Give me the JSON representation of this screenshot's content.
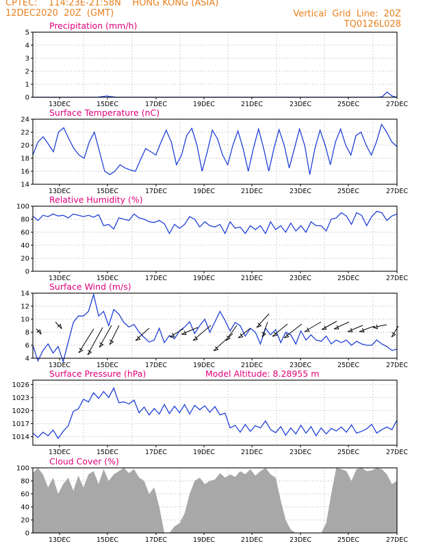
{
  "header": {
    "line1_left": "CPTEC:    114:23E-21:58N    HONG KONG (ASIA)",
    "line2_left": "12DEC2020  20Z  (GMT)",
    "line1_right": "Vertical  Grid  Line:  20Z",
    "line2_right": "TQ0126L028"
  },
  "colors": {
    "header": "#e87f1b",
    "title": "#e0007a",
    "series": "#1f3fd6",
    "cloud": "#a8a8a8",
    "arrow": "#000000"
  },
  "chart_data": [
    {
      "type": "line",
      "title": "Precipitation  (mm/h)",
      "x_ticks": [
        "13DEC",
        "15DEC",
        "17DEC",
        "19DEC",
        "21DEC",
        "23DEC",
        "25DEC",
        "27DEC"
      ],
      "x_range_days": [
        12.83,
        27.0
      ],
      "ylim": [
        0,
        5
      ],
      "y_ticks": [
        "0",
        "1",
        "2",
        "3",
        "4",
        "5"
      ],
      "series": [
        {
          "values": [
            0,
            0,
            0,
            0,
            0,
            0,
            0,
            0,
            0,
            0,
            0,
            0,
            0,
            0,
            0.05,
            0.1,
            0.05,
            0,
            0,
            0,
            0,
            0,
            0,
            0,
            0,
            0,
            0,
            0,
            0,
            0,
            0,
            0,
            0,
            0,
            0,
            0,
            0,
            0,
            0,
            0,
            0,
            0,
            0,
            0,
            0,
            0,
            0,
            0,
            0,
            0,
            0,
            0,
            0,
            0,
            0,
            0,
            0,
            0,
            0,
            0,
            0,
            0,
            0,
            0,
            0,
            0,
            0,
            0,
            0,
            0,
            0,
            0.05,
            0.4,
            0.1,
            0
          ]
        }
      ]
    },
    {
      "type": "line",
      "title": "Surface  Temperature  (nC)",
      "x_ticks": [
        "13DEC",
        "15DEC",
        "17DEC",
        "19DEC",
        "21DEC",
        "23DEC",
        "25DEC",
        "27DEC"
      ],
      "x_range_days": [
        12.83,
        27.0
      ],
      "ylim": [
        14,
        24
      ],
      "y_ticks": [
        "14",
        "16",
        "18",
        "20",
        "22",
        "24"
      ],
      "series": [
        {
          "values": [
            18.5,
            20.5,
            21.3,
            20.2,
            19.0,
            22.0,
            22.7,
            21.0,
            19.5,
            18.5,
            18.0,
            20.5,
            22.0,
            19.0,
            16.0,
            15.5,
            16.0,
            17.0,
            16.5,
            16.2,
            16.0,
            17.8,
            19.5,
            19.0,
            18.5,
            20.5,
            22.3,
            20.5,
            17.0,
            18.5,
            21.5,
            22.6,
            20.0,
            16.0,
            19.0,
            22.3,
            21.0,
            18.5,
            17.0,
            20.0,
            22.2,
            19.5,
            16.0,
            19.5,
            22.5,
            19.5,
            16.0,
            19.5,
            22.4,
            20.0,
            16.5,
            19.5,
            22.5,
            20.0,
            15.5,
            19.5,
            22.3,
            20.0,
            17.0,
            20.5,
            22.5,
            20.0,
            18.5,
            21.5,
            22.0,
            20.0,
            18.5,
            20.5,
            23.2,
            22.0,
            20.5,
            19.8
          ]
        }
      ]
    },
    {
      "type": "line",
      "title": "Relative  Humidity  (%)",
      "x_ticks": [
        "13DEC",
        "15DEC",
        "17DEC",
        "19DEC",
        "21DEC",
        "23DEC",
        "25DEC",
        "27DEC"
      ],
      "x_range_days": [
        12.83,
        27.0
      ],
      "ylim": [
        0,
        100
      ],
      "y_ticks": [
        "0",
        "20",
        "40",
        "60",
        "80",
        "100"
      ],
      "series": [
        {
          "values": [
            85,
            78,
            86,
            84,
            88,
            85,
            86,
            82,
            88,
            86,
            84,
            86,
            83,
            87,
            70,
            72,
            65,
            82,
            80,
            78,
            88,
            82,
            80,
            76,
            75,
            78,
            73,
            58,
            72,
            66,
            72,
            84,
            80,
            68,
            76,
            70,
            68,
            72,
            58,
            76,
            66,
            68,
            58,
            70,
            64,
            70,
            58,
            76,
            64,
            70,
            60,
            74,
            62,
            70,
            60,
            76,
            70,
            70,
            62,
            80,
            82,
            90,
            85,
            72,
            90,
            86,
            70,
            84,
            92,
            90,
            78,
            85,
            88
          ]
        }
      ]
    },
    {
      "type": "line",
      "title": "Surface  Wind  (m/s)",
      "x_ticks": [
        "13DEC",
        "15DEC",
        "17DEC",
        "19DEC",
        "21DEC",
        "23DEC",
        "25DEC",
        "27DEC"
      ],
      "x_range_days": [
        12.83,
        27.0
      ],
      "ylim": [
        4,
        14
      ],
      "y_ticks": [
        "4",
        "6",
        "8",
        "10",
        "12",
        "14"
      ],
      "series": [
        {
          "values": [
            6.0,
            3.6,
            5.2,
            6.2,
            4.8,
            5.8,
            3.5,
            6.5,
            9.5,
            10.5,
            10.5,
            11.2,
            13.8,
            10.5,
            11.2,
            9.0,
            11.5,
            10.8,
            9.5,
            8.8,
            9.2,
            8.0,
            7.2,
            6.5,
            6.8,
            8.6,
            6.4,
            7.5,
            7.0,
            8.2,
            8.8,
            9.6,
            7.8,
            9.0,
            10.0,
            8.0,
            9.6,
            11.2,
            9.8,
            8.2,
            9.5,
            9.0,
            7.4,
            8.6,
            8.0,
            6.2,
            8.6,
            7.6,
            8.4,
            6.4,
            8.0,
            7.6,
            6.2,
            8.2,
            6.8,
            7.6,
            6.8,
            6.6,
            7.4,
            6.2,
            6.8,
            6.4,
            6.8,
            6.0,
            6.6,
            6.2,
            6.0,
            6.0,
            6.8,
            6.2,
            5.8,
            5.2,
            5.4
          ]
        }
      ],
      "wind_barbs": "direction arrows pointing toward southwest"
    },
    {
      "type": "line",
      "title": "Surface  Pressure  (hPa)",
      "annotation": "Model  Altitude:  8.28955  m",
      "x_ticks": [
        "13DEC",
        "15DEC",
        "17DEC",
        "19DEC",
        "21DEC",
        "23DEC",
        "25DEC",
        "27DEC"
      ],
      "x_range_days": [
        12.83,
        27.0
      ],
      "ylim": [
        1012,
        1027
      ],
      "y_ticks": [
        "1014",
        "1017",
        "1020",
        "1023",
        "1026"
      ],
      "series": [
        {
          "values": [
            1014.8,
            1013.8,
            1015.0,
            1014.2,
            1015.5,
            1013.6,
            1015.2,
            1016.5,
            1019.8,
            1020.4,
            1022.6,
            1022.0,
            1024.1,
            1022.8,
            1024.4,
            1023.0,
            1025.2,
            1021.8,
            1022.0,
            1021.5,
            1022.4,
            1019.5,
            1020.8,
            1019.0,
            1020.5,
            1019.2,
            1021.4,
            1019.3,
            1021.0,
            1019.5,
            1021.4,
            1019.2,
            1021.2,
            1020.2,
            1021.1,
            1019.6,
            1020.9,
            1019.0,
            1019.4,
            1016.0,
            1016.6,
            1015.0,
            1016.8,
            1015.2,
            1016.5,
            1016.0,
            1017.6,
            1015.6,
            1014.9,
            1016.3,
            1014.3,
            1016.0,
            1014.6,
            1016.6,
            1014.8,
            1016.3,
            1014.2,
            1016.0,
            1014.6,
            1015.9,
            1015.3,
            1016.2,
            1015.0,
            1016.7,
            1014.8,
            1015.2,
            1015.8,
            1016.8,
            1014.8,
            1015.6,
            1016.2,
            1015.6,
            1017.8
          ]
        }
      ]
    },
    {
      "type": "area",
      "title": "Cloud  Cover  (%)",
      "x_ticks": [
        "13DEC",
        "15DEC",
        "17DEC",
        "19DEC",
        "21DEC",
        "23DEC",
        "25DEC",
        "27DEC"
      ],
      "x_range_days": [
        12.83,
        27.0
      ],
      "ylim": [
        0,
        100
      ],
      "y_ticks": [
        "0",
        "20",
        "40",
        "60",
        "80",
        "100"
      ],
      "series": [
        {
          "values": [
            92,
            100,
            90,
            70,
            85,
            60,
            75,
            85,
            65,
            88,
            70,
            90,
            95,
            75,
            98,
            80,
            90,
            95,
            100,
            92,
            98,
            85,
            80,
            60,
            70,
            40,
            0,
            0,
            10,
            15,
            30,
            60,
            80,
            85,
            75,
            80,
            82,
            92,
            85,
            90,
            86,
            95,
            90,
            98,
            88,
            95,
            100,
            90,
            85,
            50,
            20,
            5,
            0,
            0,
            0,
            0,
            0,
            0,
            15,
            60,
            100,
            98,
            95,
            80,
            98,
            100,
            95,
            96,
            100,
            98,
            90,
            75,
            80
          ]
        }
      ]
    }
  ]
}
